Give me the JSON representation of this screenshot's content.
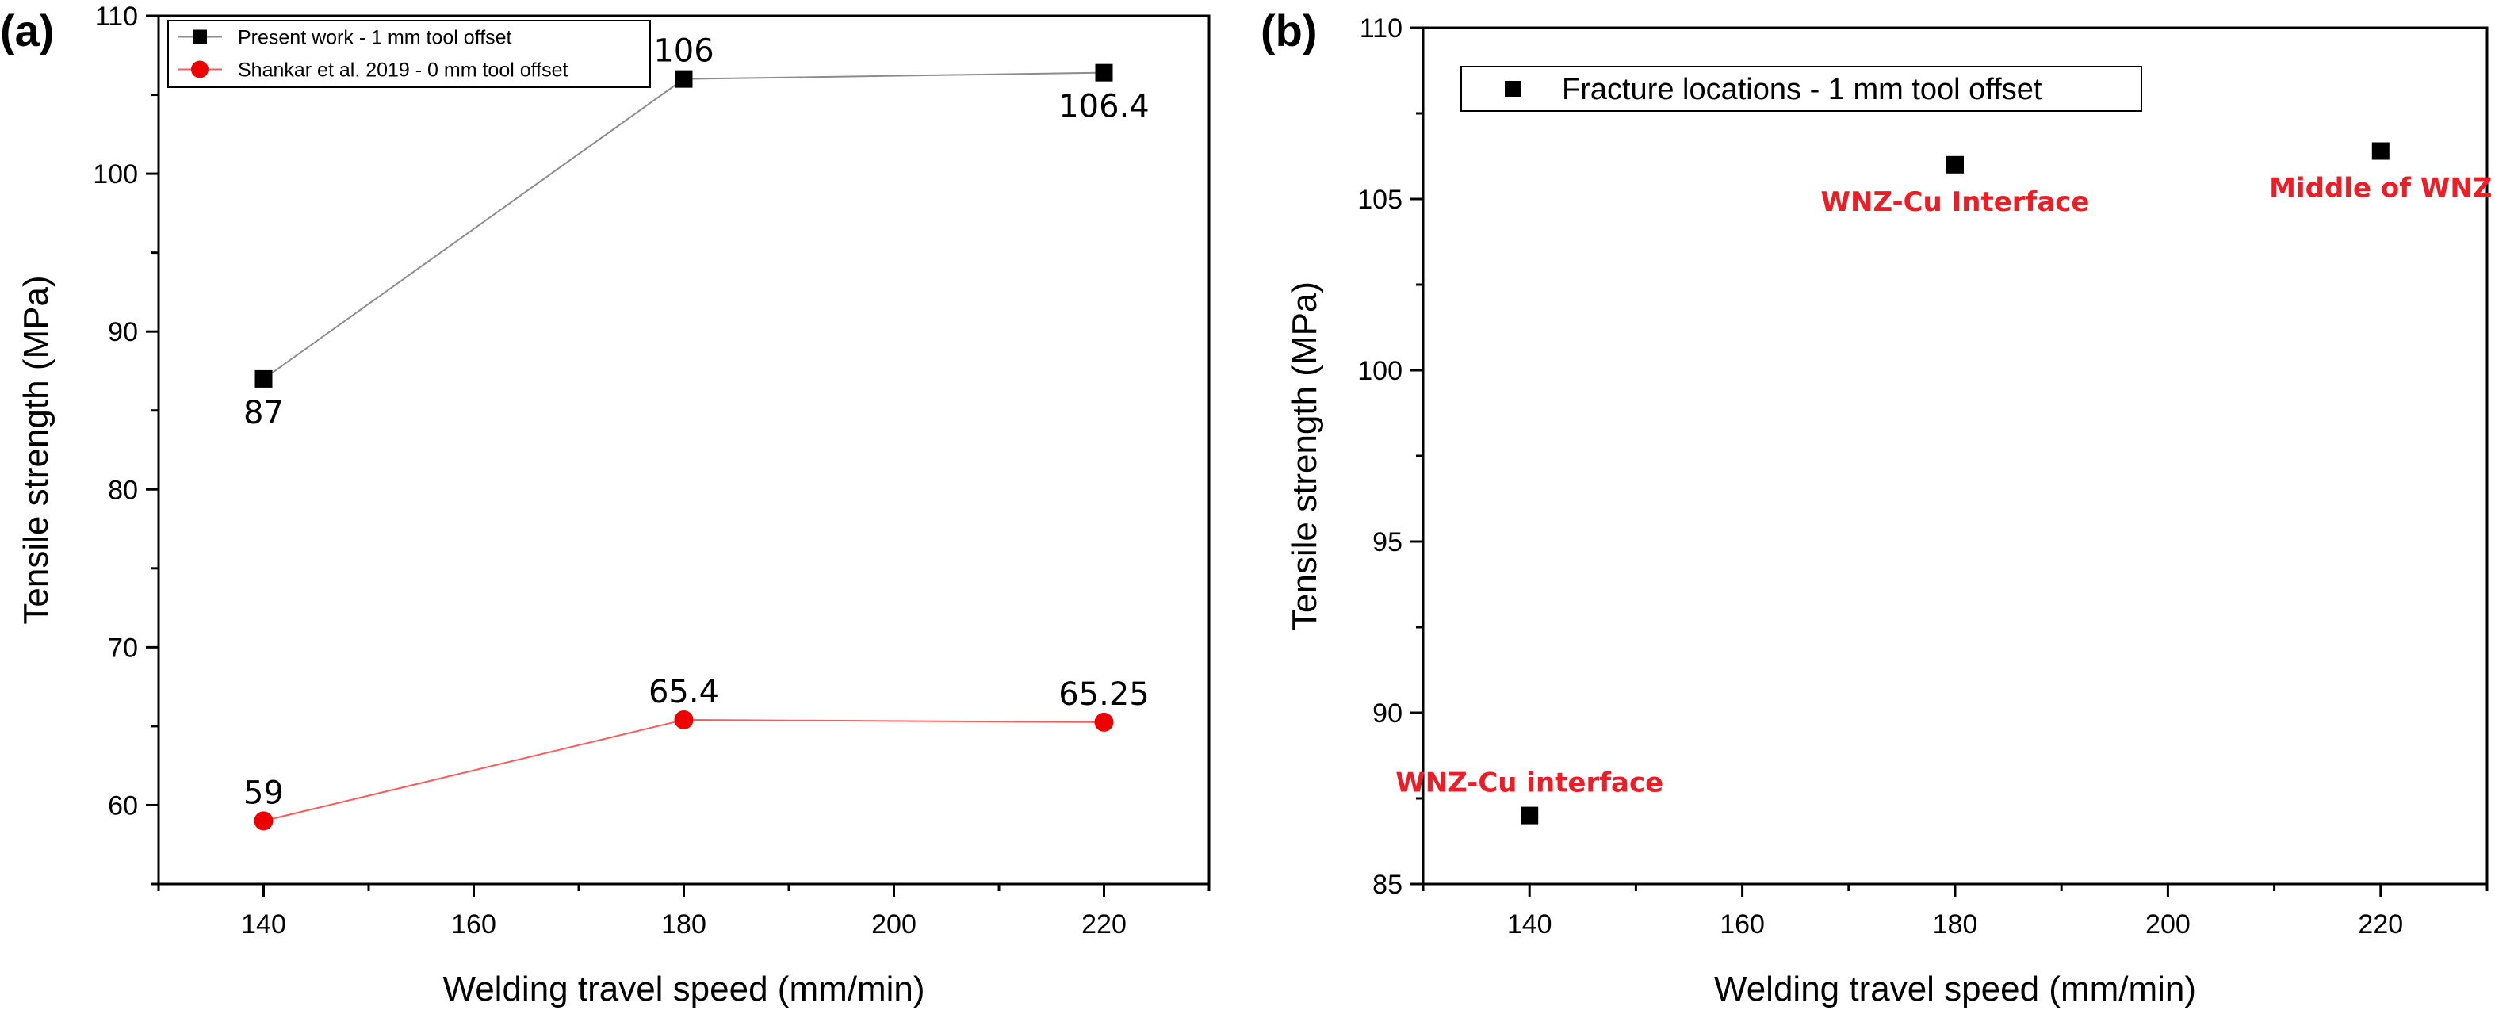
{
  "chart_data": [
    {
      "panel_label": "(a)",
      "type": "line",
      "xlabel": "Welding travel speed (mm/min)",
      "ylabel": "Tensile strength (MPa)",
      "xlim": [
        130,
        230
      ],
      "ylim": [
        55,
        110
      ],
      "xticks": [
        140,
        160,
        180,
        200,
        220
      ],
      "yticks": [
        60,
        70,
        80,
        90,
        100,
        110
      ],
      "grid": false,
      "legend_position": "top-left",
      "series": [
        {
          "name": "Present work - 1 mm tool offset",
          "color": "#000000",
          "line_color": "#8c8c8c",
          "marker": "square",
          "x": [
            140,
            180,
            220
          ],
          "y": [
            87,
            106,
            106.4
          ],
          "labels": [
            "87",
            "106",
            "106.4"
          ],
          "label_pos": [
            "below",
            "above",
            "below"
          ]
        },
        {
          "name": "Shankar et al. 2019 - 0 mm tool offset",
          "color": "#ee0000",
          "line_color": "#ff5a5a",
          "marker": "circle",
          "x": [
            140,
            180,
            220
          ],
          "y": [
            59,
            65.4,
            65.25
          ],
          "labels": [
            "59",
            "65.4",
            "65.25"
          ],
          "label_pos": [
            "above",
            "above",
            "above"
          ]
        }
      ]
    },
    {
      "panel_label": "(b)",
      "type": "scatter",
      "xlabel": "Welding travel speed (mm/min)",
      "ylabel": "Tensile strength (MPa)",
      "xlim": [
        130,
        230
      ],
      "ylim": [
        85,
        110
      ],
      "xticks": [
        140,
        160,
        180,
        200,
        220
      ],
      "yticks": [
        85,
        90,
        95,
        100,
        105,
        110
      ],
      "grid": false,
      "legend_position": "top-left",
      "series": [
        {
          "name": "Fracture locations - 1 mm tool offset",
          "color": "#000000",
          "marker": "square",
          "x": [
            140,
            180,
            220
          ],
          "y": [
            87,
            106,
            106.4
          ]
        }
      ],
      "annotations": [
        {
          "text": "WNZ-Cu interface",
          "x": 140,
          "y": 87,
          "color": "#ee1c25"
        },
        {
          "text": "WNZ-Cu Interface",
          "x": 180,
          "y": 106,
          "color": "#ee1c25"
        },
        {
          "text": "Middle of WNZ",
          "x": 220,
          "y": 106.4,
          "color": "#ee1c25"
        }
      ]
    }
  ]
}
